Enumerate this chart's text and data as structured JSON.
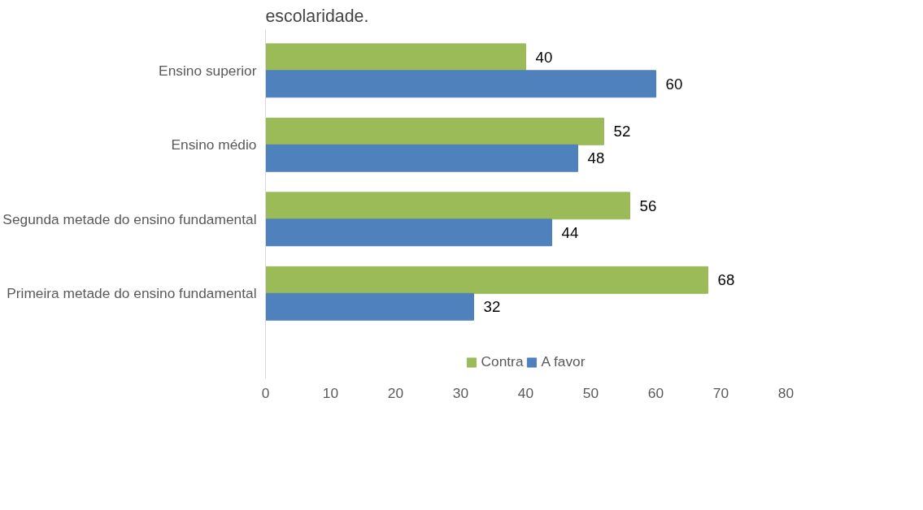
{
  "chart_data": {
    "type": "bar",
    "orientation": "horizontal",
    "title": "escolaridade.",
    "categories": [
      "Ensino superior",
      "Ensino médio",
      "Segunda metade do ensino fundamental",
      "Primeira metade do ensino fundamental"
    ],
    "series": [
      {
        "name": "Contra",
        "color": "#9bbb59",
        "values": [
          40,
          52,
          56,
          68
        ]
      },
      {
        "name": "A favor",
        "color": "#4f81bd",
        "values": [
          60,
          48,
          44,
          32
        ]
      }
    ],
    "xlim": [
      0,
      80
    ],
    "xticks": [
      0,
      10,
      20,
      30,
      40,
      50,
      60,
      70,
      80
    ],
    "data_labels": true,
    "grid": false,
    "legend": "bottom"
  }
}
